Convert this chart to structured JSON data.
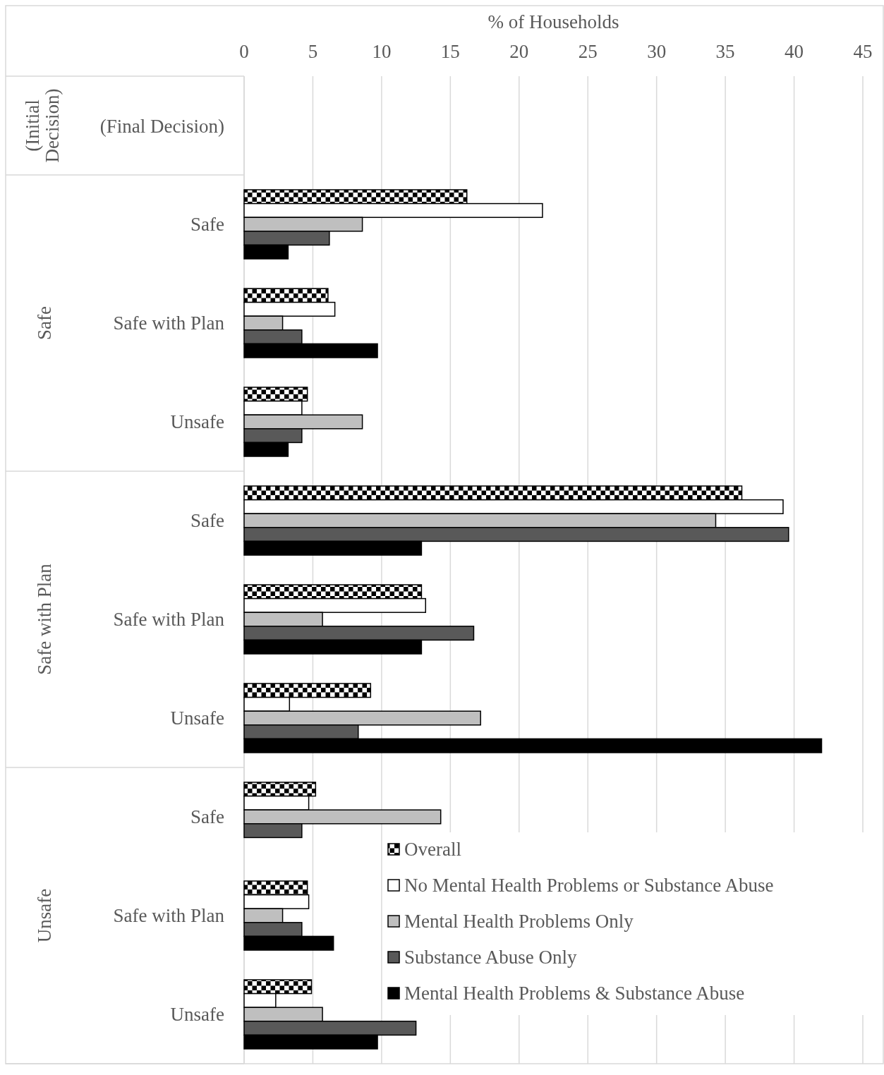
{
  "chart_data": {
    "type": "bar",
    "orientation": "horizontal",
    "xlabel": "% of Households",
    "ylabel": "(Final Decision)",
    "annotations": [
      "(Initial Decision)",
      "Safe",
      "Safe with Plan",
      "Unsafe"
    ],
    "categories": [
      "Safe",
      "Safe with Plan",
      "Unsafe",
      "Safe",
      "Safe with Plan",
      "Unsafe",
      "Safe",
      "Safe with Plan",
      "Unsafe"
    ],
    "series": [
      {
        "name": "Overall",
        "color": "#000000",
        "values": [
          16.2,
          6.1,
          4.6,
          36.2,
          12.9,
          9.2,
          5.2,
          4.6,
          4.9
        ]
      },
      {
        "name": "No Mental Health Problems or Substance Abuse",
        "color": "#ffffff",
        "values": [
          21.7,
          6.6,
          4.2,
          39.2,
          13.2,
          3.3,
          4.7,
          4.7,
          2.3
        ]
      },
      {
        "name": "Mental Health Problems Only",
        "color": "#bfbfbf",
        "values": [
          8.6,
          2.8,
          8.6,
          34.3,
          5.7,
          17.2,
          14.3,
          2.8,
          5.7
        ]
      },
      {
        "name": "Substance Abuse Only",
        "color": "#595959",
        "values": [
          6.2,
          4.2,
          4.2,
          39.6,
          16.7,
          8.3,
          4.2,
          4.2,
          12.5
        ]
      },
      {
        "name": "Mental Health Problems & Substance Abuse",
        "color": "#000000",
        "values": [
          3.2,
          9.7,
          3.2,
          12.9,
          12.9,
          42.0,
          0,
          6.5,
          9.7
        ]
      }
    ],
    "xlim": [
      0,
      45
    ],
    "xticks": [
      0,
      5,
      10,
      15,
      20,
      25,
      30,
      35,
      40,
      45
    ],
    "grid": "x",
    "legend": "bottom right"
  }
}
